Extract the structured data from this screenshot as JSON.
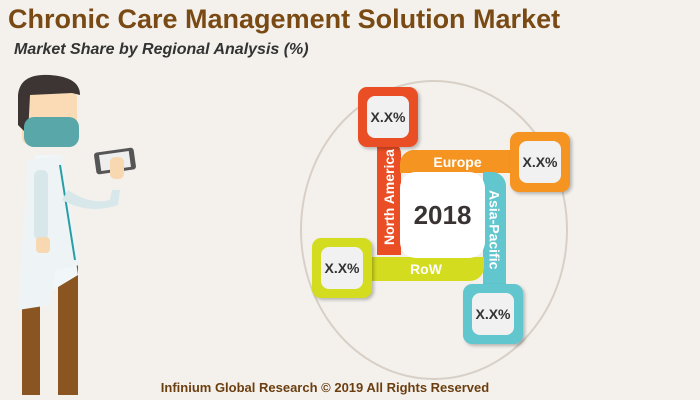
{
  "title": "Chronic Care Management Solution Market",
  "subtitle": "Market Share by Regional Analysis (%)",
  "year": "2018",
  "regions": [
    {
      "name": "North America",
      "value": "X.X%",
      "color": "#ea4e25"
    },
    {
      "name": "Europe",
      "value": "X.X%",
      "color": "#f59420"
    },
    {
      "name": "Asia-Pacific",
      "value": "X.X%",
      "color": "#62c6cf"
    },
    {
      "name": "RoW",
      "value": "X.X%",
      "color": "#d4dc1f"
    }
  ],
  "footer": "Infinium Global Research © 2019 All Rights Reserved"
}
